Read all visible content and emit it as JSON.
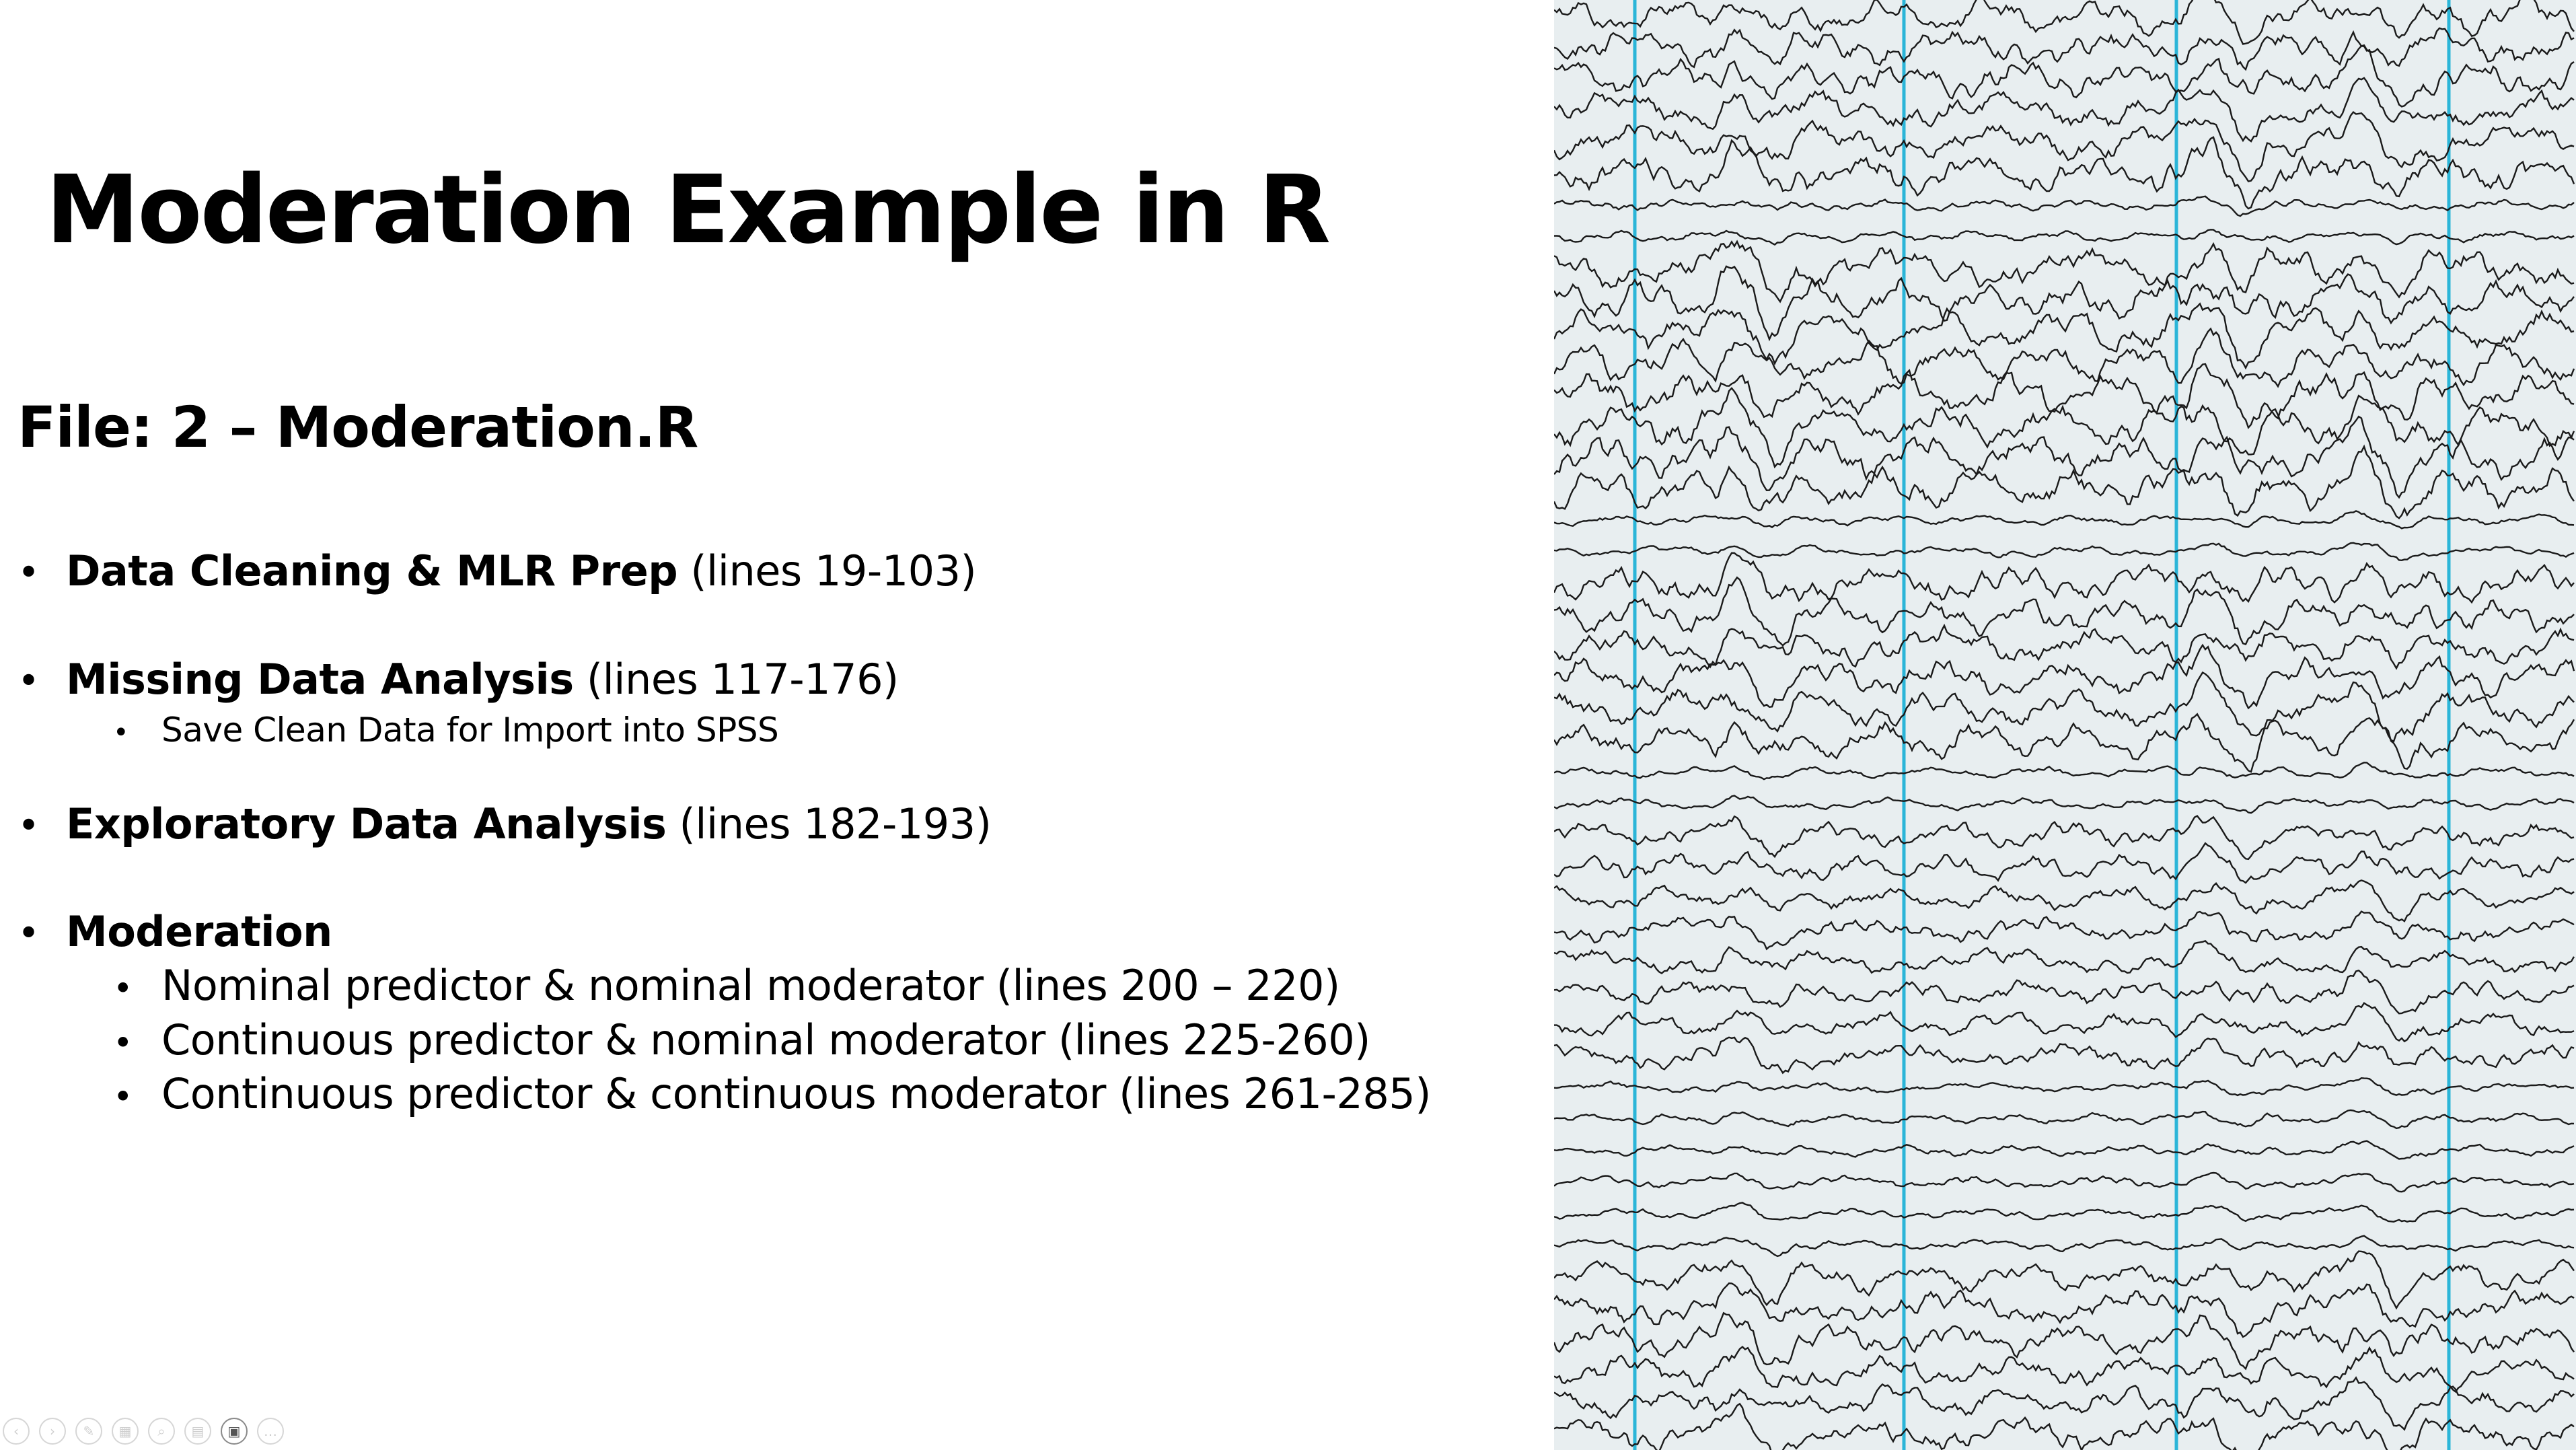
{
  "slide": {
    "title": "Moderation Example in R",
    "subtitle": "File: 2 – Moderation.R",
    "bullets": [
      {
        "bold": "Data Cleaning & MLR Prep",
        "rest": " (lines 19-103)"
      },
      {
        "bold": "Missing Data Analysis",
        "rest": " (lines 117-176)",
        "sub": [
          "Save Clean Data for Import into SPSS"
        ]
      },
      {
        "bold": "Exploratory Data Analysis",
        "rest": " (lines 182-193)"
      },
      {
        "bold": "Moderation",
        "rest": "",
        "sub": [
          "Nominal predictor & nominal moderator (lines 200 – 220)",
          "Continuous predictor & nominal moderator (lines 225-260)",
          "Continuous predictor & continuous moderator (lines 261-285)"
        ]
      }
    ],
    "bullet_glyph": "•"
  },
  "image": {
    "subject": "eeg-recording-icon",
    "colors": {
      "background": "#e8eef0",
      "trace": "#1a1a1a",
      "marker": "#2bb5d8"
    }
  },
  "controls": [
    {
      "icon": "previous-slide-icon",
      "glyph": "‹"
    },
    {
      "icon": "next-slide-icon",
      "glyph": "›"
    },
    {
      "icon": "pen-icon",
      "glyph": "✎"
    },
    {
      "icon": "all-slides-icon",
      "glyph": "▦"
    },
    {
      "icon": "zoom-icon",
      "glyph": "⌕"
    },
    {
      "icon": "subtitles-icon",
      "glyph": "▤"
    },
    {
      "icon": "camera-icon",
      "glyph": "▣"
    },
    {
      "icon": "more-options-icon",
      "glyph": "…"
    }
  ]
}
